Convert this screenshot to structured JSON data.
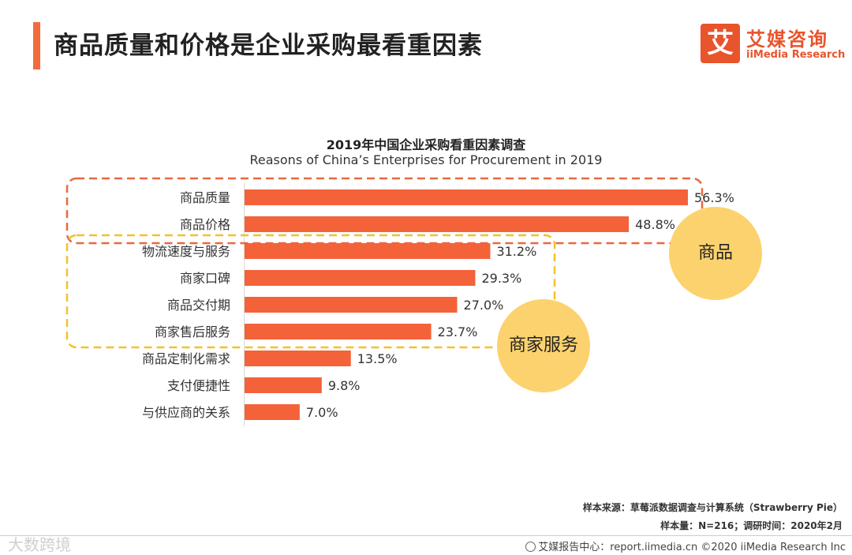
{
  "header": {
    "title": "商品质量和价格是企业采购最看重因素",
    "logo_mark": "艾",
    "logo_cn": "艾媒咨询",
    "logo_en": "iiMedia Research"
  },
  "chart_data": {
    "type": "bar",
    "orientation": "horizontal",
    "title": "2019年中国企业采购看重因素调查",
    "subtitle": "Reasons of China’s Enterprises for Procurement in 2019",
    "categories": [
      "商品质量",
      "商品价格",
      "物流速度与服务",
      "商家口碑",
      "商品交付期",
      "商家售后服务",
      "商品定制化需求",
      "支付便捷性",
      "与供应商的关系"
    ],
    "values": [
      56.3,
      48.8,
      31.2,
      29.3,
      27.0,
      23.7,
      13.5,
      9.8,
      7.0
    ],
    "labels": [
      "56.3%",
      "48.8%",
      "31.2%",
      "29.3%",
      "27.0%",
      "23.7%",
      "13.5%",
      "9.8%",
      "7.0%"
    ],
    "unit": "%",
    "xlim": [
      0,
      60
    ],
    "bar_color": "#f4623a",
    "groups": [
      {
        "name": "商品",
        "items": [
          "商品质量",
          "商品价格"
        ],
        "border_color": "#e8693f"
      },
      {
        "name": "商家服务",
        "items": [
          "物流速度与服务",
          "商家口碑",
          "商品交付期",
          "商家售后服务"
        ],
        "border_color": "#f2c12e"
      }
    ]
  },
  "annotations": {
    "goods": "商品",
    "service": "商家服务"
  },
  "footer": {
    "source": "样本来源：草莓派数据调查与计算系统（Strawberry Pie）",
    "sample": "样本量：N=216；调研时间：2020年2月",
    "site": "艾媒报告中心：report.iimedia.cn ©2020 iiMedia Research Inc",
    "watermark": "大数跨境"
  }
}
